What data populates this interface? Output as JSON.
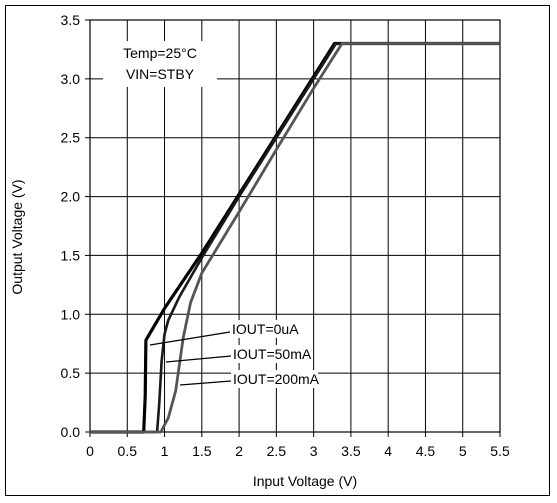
{
  "chart_data": {
    "type": "line",
    "title": "",
    "xlabel": "Input Voltage (V)",
    "ylabel": "Output Voltage  (V)",
    "xlim": [
      0,
      5.5
    ],
    "ylim": [
      0,
      3.5
    ],
    "x_ticks": [
      "0",
      "0.5",
      "1",
      "1.5",
      "2",
      "2.5",
      "3",
      "3.5",
      "4",
      "4.5",
      "5",
      "5.5"
    ],
    "y_ticks": [
      "0.0",
      "0.5",
      "1.0",
      "1.5",
      "2.0",
      "2.5",
      "3.0",
      "3.5"
    ],
    "grid": true,
    "conditions": [
      "Temp=25°C",
      "VIN=STBY"
    ],
    "series": [
      {
        "name": "IOUT=0uA",
        "color": "#000000",
        "points": [
          [
            0,
            0
          ],
          [
            0.72,
            0
          ],
          [
            0.74,
            0.3
          ],
          [
            0.75,
            0.78
          ],
          [
            1.0,
            1.05
          ],
          [
            1.5,
            1.52
          ],
          [
            2.0,
            2.02
          ],
          [
            2.5,
            2.52
          ],
          [
            3.0,
            3.02
          ],
          [
            3.28,
            3.3
          ],
          [
            5.5,
            3.3
          ]
        ]
      },
      {
        "name": "IOUT=50mA",
        "color": "#1a1a1a",
        "points": [
          [
            0,
            0
          ],
          [
            0.9,
            0
          ],
          [
            0.93,
            0.25
          ],
          [
            0.96,
            0.6
          ],
          [
            1.0,
            0.83
          ],
          [
            1.05,
            0.95
          ],
          [
            1.2,
            1.15
          ],
          [
            1.5,
            1.48
          ],
          [
            2.0,
            2.0
          ],
          [
            2.5,
            2.5
          ],
          [
            3.0,
            3.0
          ],
          [
            3.3,
            3.3
          ],
          [
            5.5,
            3.3
          ]
        ]
      },
      {
        "name": "IOUT=200mA",
        "color": "#555555",
        "points": [
          [
            0,
            0
          ],
          [
            0.95,
            0
          ],
          [
            1.05,
            0.12
          ],
          [
            1.15,
            0.35
          ],
          [
            1.25,
            0.8
          ],
          [
            1.35,
            1.1
          ],
          [
            1.5,
            1.35
          ],
          [
            2.0,
            1.87
          ],
          [
            2.5,
            2.4
          ],
          [
            3.0,
            2.92
          ],
          [
            3.38,
            3.3
          ],
          [
            5.5,
            3.3
          ]
        ]
      }
    ],
    "annotations": [
      "IOUT=0uA",
      "IOUT=50mA",
      "IOUT=200mA"
    ]
  }
}
